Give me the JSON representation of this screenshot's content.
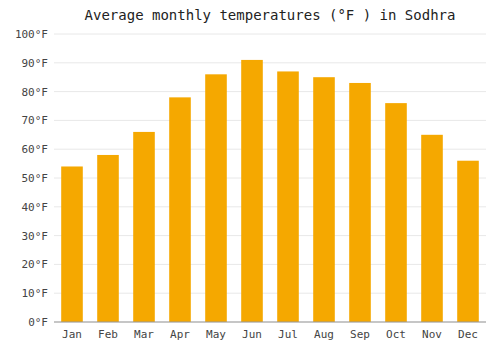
{
  "chart_data": {
    "type": "bar",
    "title": "Average monthly temperatures (°F ) in Sodhra",
    "categories": [
      "Jan",
      "Feb",
      "Mar",
      "Apr",
      "May",
      "Jun",
      "Jul",
      "Aug",
      "Sep",
      "Oct",
      "Nov",
      "Dec"
    ],
    "values": [
      54,
      58,
      66,
      78,
      86,
      91,
      87,
      85,
      83,
      76,
      65,
      56
    ],
    "color": "#F5A800",
    "ylim": [
      0,
      100
    ],
    "yticks": [
      {
        "value": 0,
        "label": "0°F"
      },
      {
        "value": 10,
        "label": "10°F"
      },
      {
        "value": 20,
        "label": "20°F"
      },
      {
        "value": 30,
        "label": "30°F"
      },
      {
        "value": 40,
        "label": "40°F"
      },
      {
        "value": 50,
        "label": "50°F"
      },
      {
        "value": 60,
        "label": "60°F"
      },
      {
        "value": 70,
        "label": "70°F"
      },
      {
        "value": 80,
        "label": "80°F"
      },
      {
        "value": 90,
        "label": "90°F"
      },
      {
        "value": 100,
        "label": "100°F"
      }
    ],
    "grid": true
  }
}
